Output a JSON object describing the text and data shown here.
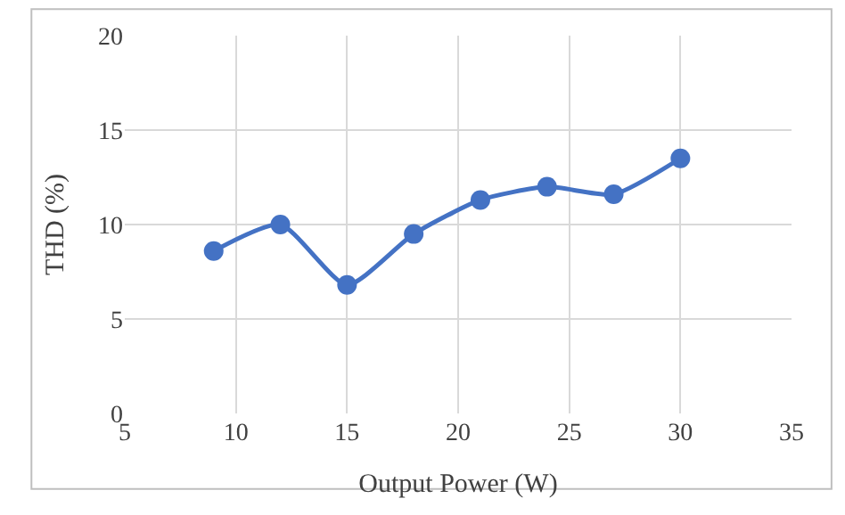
{
  "chart_data": {
    "type": "line",
    "xlabel": "Output Power (W)",
    "ylabel": "THD (%)",
    "x": [
      9,
      12,
      15,
      18,
      21,
      24,
      27,
      30
    ],
    "series": [
      {
        "color": "#4472c4",
        "values": [
          8.6,
          10.0,
          6.8,
          9.5,
          11.3,
          12.0,
          11.6,
          13.5
        ]
      }
    ],
    "xlim": [
      5,
      35
    ],
    "xticks": [
      5,
      10,
      15,
      20,
      25,
      30,
      35
    ],
    "ylim": [
      0,
      20
    ],
    "yticks": [
      0,
      5,
      10,
      15,
      20
    ],
    "grid": true,
    "marker": "circle",
    "line_style": "solid",
    "legend": false
  }
}
